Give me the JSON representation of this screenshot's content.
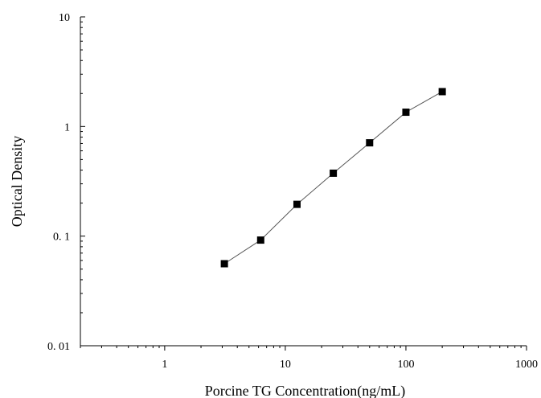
{
  "chart_data": {
    "type": "scatter",
    "title": "",
    "xlabel": "Porcine TG Concentration(ng/mL)",
    "ylabel": "Optical Density",
    "x_scale": "log",
    "y_scale": "log",
    "xlim": [
      0.2,
      1000
    ],
    "ylim": [
      0.01,
      10
    ],
    "x_ticks": [
      {
        "value": 1,
        "label": "1"
      },
      {
        "value": 10,
        "label": "10"
      },
      {
        "value": 100,
        "label": "100"
      },
      {
        "value": 1000,
        "label": "1000"
      }
    ],
    "y_ticks": [
      {
        "value": 0.01,
        "label": "0. 01"
      },
      {
        "value": 0.1,
        "label": "0. 1"
      },
      {
        "value": 1,
        "label": "1"
      },
      {
        "value": 10,
        "label": "10"
      }
    ],
    "grid": false,
    "legend": "none",
    "marker": "square",
    "marker_color": "#000000",
    "line_color": "#555555",
    "series": [
      {
        "x": [
          3.125,
          6.25,
          12.5,
          25,
          50,
          100,
          200
        ],
        "y": [
          0.056,
          0.092,
          0.195,
          0.375,
          0.71,
          1.35,
          2.08
        ]
      }
    ]
  }
}
